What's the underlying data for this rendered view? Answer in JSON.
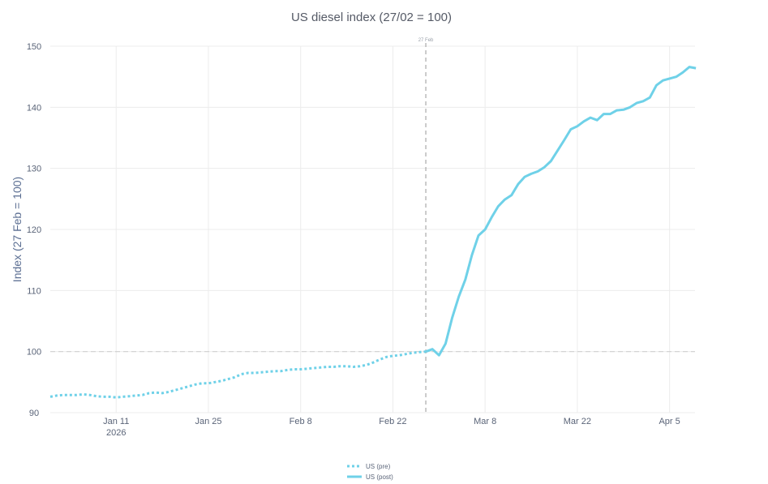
{
  "chart_data": {
    "type": "line",
    "title": "US diesel index (27/02 = 100)",
    "xlabel": "",
    "ylabel": "Index (27 Feb = 100)",
    "ylim": [
      90,
      150
    ],
    "y_ticks": [
      90,
      100,
      110,
      120,
      130,
      140,
      150
    ],
    "x_axis": {
      "type": "date",
      "range": [
        "2026-01-01",
        "2026-04-08"
      ],
      "ticks": [
        {
          "date": "2026-01-11",
          "label": "Jan 11",
          "sublabel": "2026"
        },
        {
          "date": "2026-01-25",
          "label": "Jan 25",
          "sublabel": ""
        },
        {
          "date": "2026-02-08",
          "label": "Feb 8",
          "sublabel": ""
        },
        {
          "date": "2026-02-22",
          "label": "Feb 22",
          "sublabel": ""
        },
        {
          "date": "2026-03-08",
          "label": "Mar 8",
          "sublabel": ""
        },
        {
          "date": "2026-03-22",
          "label": "Mar 22",
          "sublabel": ""
        },
        {
          "date": "2026-04-05",
          "label": "Apr 5",
          "sublabel": ""
        }
      ]
    },
    "grid": true,
    "legend_position": "bottom-center",
    "reference_lines": [
      {
        "orientation": "vertical",
        "date": "2026-02-27",
        "label": "27 Feb",
        "style": "dashed"
      },
      {
        "orientation": "horizontal",
        "value": 100,
        "label": "",
        "style": "dashed"
      }
    ],
    "series": [
      {
        "name": "US (pre)",
        "color": "#6fd1e8",
        "style": "dotted",
        "points": [
          [
            "2026-01-01",
            92.6
          ],
          [
            "2026-01-02",
            92.8
          ],
          [
            "2026-01-03",
            92.9
          ],
          [
            "2026-01-04",
            92.9
          ],
          [
            "2026-01-05",
            92.9
          ],
          [
            "2026-01-06",
            93.0
          ],
          [
            "2026-01-07",
            92.9
          ],
          [
            "2026-01-08",
            92.7
          ],
          [
            "2026-01-09",
            92.6
          ],
          [
            "2026-01-10",
            92.6
          ],
          [
            "2026-01-11",
            92.5
          ],
          [
            "2026-01-12",
            92.6
          ],
          [
            "2026-01-13",
            92.7
          ],
          [
            "2026-01-14",
            92.8
          ],
          [
            "2026-01-15",
            92.9
          ],
          [
            "2026-01-16",
            93.2
          ],
          [
            "2026-01-17",
            93.3
          ],
          [
            "2026-01-18",
            93.2
          ],
          [
            "2026-01-19",
            93.4
          ],
          [
            "2026-01-20",
            93.7
          ],
          [
            "2026-01-21",
            94.0
          ],
          [
            "2026-01-22",
            94.3
          ],
          [
            "2026-01-23",
            94.6
          ],
          [
            "2026-01-24",
            94.8
          ],
          [
            "2026-01-25",
            94.8
          ],
          [
            "2026-01-26",
            95.0
          ],
          [
            "2026-01-27",
            95.2
          ],
          [
            "2026-01-28",
            95.5
          ],
          [
            "2026-01-29",
            95.8
          ],
          [
            "2026-01-30",
            96.3
          ],
          [
            "2026-01-31",
            96.5
          ],
          [
            "2026-02-01",
            96.5
          ],
          [
            "2026-02-02",
            96.6
          ],
          [
            "2026-02-03",
            96.7
          ],
          [
            "2026-02-04",
            96.8
          ],
          [
            "2026-02-05",
            96.8
          ],
          [
            "2026-02-06",
            97.0
          ],
          [
            "2026-02-07",
            97.1
          ],
          [
            "2026-02-08",
            97.1
          ],
          [
            "2026-02-09",
            97.2
          ],
          [
            "2026-02-10",
            97.3
          ],
          [
            "2026-02-11",
            97.4
          ],
          [
            "2026-02-12",
            97.5
          ],
          [
            "2026-02-13",
            97.5
          ],
          [
            "2026-02-14",
            97.6
          ],
          [
            "2026-02-15",
            97.6
          ],
          [
            "2026-02-16",
            97.5
          ],
          [
            "2026-02-17",
            97.6
          ],
          [
            "2026-02-18",
            97.8
          ],
          [
            "2026-02-19",
            98.2
          ],
          [
            "2026-02-20",
            98.7
          ],
          [
            "2026-02-21",
            99.1
          ],
          [
            "2026-02-22",
            99.3
          ],
          [
            "2026-02-23",
            99.4
          ],
          [
            "2026-02-24",
            99.6
          ],
          [
            "2026-02-25",
            99.8
          ],
          [
            "2026-02-26",
            99.9
          ],
          [
            "2026-02-27",
            100.0
          ]
        ]
      },
      {
        "name": "US (post)",
        "color": "#6fd1e8",
        "style": "solid",
        "points": [
          [
            "2026-02-27",
            100.0
          ],
          [
            "2026-02-28",
            100.4
          ],
          [
            "2026-03-01",
            99.4
          ],
          [
            "2026-03-02",
            101.3
          ],
          [
            "2026-03-03",
            105.5
          ],
          [
            "2026-03-04",
            109.0
          ],
          [
            "2026-03-05",
            111.8
          ],
          [
            "2026-03-06",
            115.8
          ],
          [
            "2026-03-07",
            119.0
          ],
          [
            "2026-03-08",
            120.0
          ],
          [
            "2026-03-09",
            122.0
          ],
          [
            "2026-03-10",
            123.8
          ],
          [
            "2026-03-11",
            124.9
          ],
          [
            "2026-03-12",
            125.6
          ],
          [
            "2026-03-13",
            127.4
          ],
          [
            "2026-03-14",
            128.6
          ],
          [
            "2026-03-15",
            129.1
          ],
          [
            "2026-03-16",
            129.5
          ],
          [
            "2026-03-17",
            130.2
          ],
          [
            "2026-03-18",
            131.2
          ],
          [
            "2026-03-19",
            132.9
          ],
          [
            "2026-03-20",
            134.6
          ],
          [
            "2026-03-21",
            136.4
          ],
          [
            "2026-03-22",
            136.9
          ],
          [
            "2026-03-23",
            137.7
          ],
          [
            "2026-03-24",
            138.3
          ],
          [
            "2026-03-25",
            137.9
          ],
          [
            "2026-03-26",
            138.9
          ],
          [
            "2026-03-27",
            138.9
          ],
          [
            "2026-03-28",
            139.5
          ],
          [
            "2026-03-29",
            139.6
          ],
          [
            "2026-03-30",
            140.0
          ],
          [
            "2026-03-31",
            140.7
          ],
          [
            "2026-04-01",
            141.0
          ],
          [
            "2026-04-02",
            141.6
          ],
          [
            "2026-04-03",
            143.6
          ],
          [
            "2026-04-04",
            144.4
          ],
          [
            "2026-04-05",
            144.7
          ],
          [
            "2026-04-06",
            145.0
          ],
          [
            "2026-04-07",
            145.7
          ],
          [
            "2026-04-08",
            146.6
          ],
          [
            "2026-04-09",
            146.4
          ]
        ]
      }
    ]
  }
}
